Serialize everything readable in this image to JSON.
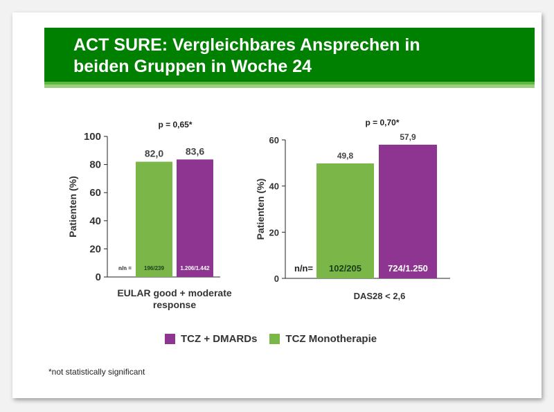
{
  "slide": {
    "title_line1": "ACT SURE: Vergleichbares Ansprechen in",
    "title_line2": "beiden Gruppen in Woche 24",
    "footnote": "*not statistically significant",
    "colors": {
      "header_green": "#008000",
      "tcz_dmards": "#8e3592",
      "tcz_mono": "#7ab648"
    }
  },
  "legend": [
    {
      "label": "TCZ + DMARDs",
      "color": "#8e3592"
    },
    {
      "label": "TCZ Monotherapie",
      "color": "#7ab648"
    }
  ],
  "chart_data": [
    {
      "type": "bar",
      "p_value": "p = 0,65*",
      "ylabel": "Patienten (%)",
      "ylim": [
        0,
        100
      ],
      "yticks": [
        0,
        20,
        40,
        60,
        80,
        100
      ],
      "category_label_lines": [
        "EULAR good + moderate",
        "response"
      ],
      "nn_label": "n/n =",
      "series": [
        {
          "name": "TCZ Monotherapie",
          "value": 82.0,
          "value_label": "82,0",
          "nn": "196/239",
          "color": "#7ab648"
        },
        {
          "name": "TCZ + DMARDs",
          "value": 83.6,
          "value_label": "83,6",
          "nn": "1.206/1.442",
          "color": "#8e3592"
        }
      ]
    },
    {
      "type": "bar",
      "p_value": "p = 0,70*",
      "ylabel": "Patienten (%)",
      "ylim": [
        0,
        60
      ],
      "yticks": [
        0,
        20,
        40,
        60
      ],
      "category_label_lines": [
        "DAS28 < 2,6"
      ],
      "nn_label": "n/n=",
      "series": [
        {
          "name": "TCZ Monotherapie",
          "value": 49.8,
          "value_label": "49,8",
          "nn": "102/205",
          "color": "#7ab648"
        },
        {
          "name": "TCZ + DMARDs",
          "value": 57.9,
          "value_label": "57,9",
          "nn": "724/1.250",
          "color": "#8e3592"
        }
      ]
    }
  ]
}
